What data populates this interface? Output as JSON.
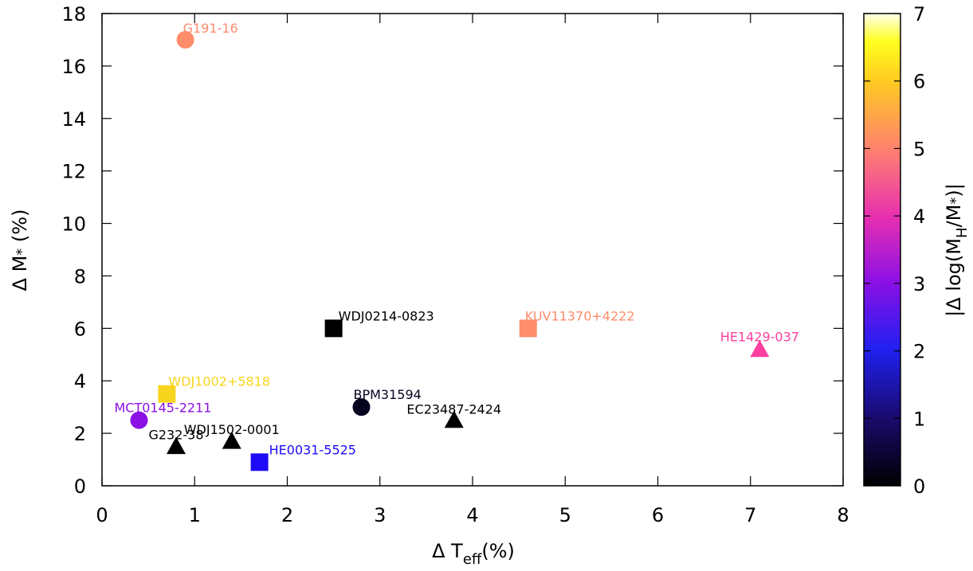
{
  "chart_data": {
    "type": "scatter",
    "xlabel": "Δ T_eff(%)",
    "ylabel": "Δ M* (%)",
    "colorbar_label": "|Δ log(M_H/M*)|",
    "xlim": [
      0,
      8
    ],
    "ylim": [
      0,
      18
    ],
    "clim": [
      0,
      7
    ],
    "x_ticks": [
      "0",
      "1",
      "2",
      "3",
      "4",
      "5",
      "6",
      "7",
      "8"
    ],
    "y_ticks": [
      "0",
      "2",
      "4",
      "6",
      "8",
      "10",
      "12",
      "14",
      "16",
      "18"
    ],
    "colorbar_ticks": [
      "0",
      "1",
      "2",
      "3",
      "4",
      "5",
      "6",
      "7"
    ],
    "grid": false,
    "points": [
      {
        "name": "G191-16",
        "x": 0.9,
        "y": 17.0,
        "marker": "circle",
        "c": 5.0,
        "color": "#ff8c6b"
      },
      {
        "name": "KUV11370+4222",
        "x": 4.6,
        "y": 6.0,
        "marker": "square",
        "c": 5.0,
        "color": "#ff8c6b"
      },
      {
        "name": "HE1429-037",
        "x": 7.1,
        "y": 5.2,
        "marker": "triangle",
        "c": 4.3,
        "color": "#ff3fa0"
      },
      {
        "name": "WDJ0214-0823",
        "x": 2.5,
        "y": 6.0,
        "marker": "square",
        "c": 0.0,
        "color": "#000000"
      },
      {
        "name": "WDJ1002+5818",
        "x": 0.7,
        "y": 3.5,
        "marker": "square",
        "c": 6.2,
        "color": "#f7d51e"
      },
      {
        "name": "BPM31594",
        "x": 2.8,
        "y": 3.0,
        "marker": "circle",
        "c": 0.3,
        "color": "#06031e"
      },
      {
        "name": "EC23487-2424",
        "x": 3.8,
        "y": 2.5,
        "marker": "triangle",
        "c": 0.0,
        "color": "#000000"
      },
      {
        "name": "MCT0145-2211",
        "x": 0.4,
        "y": 2.5,
        "marker": "circle",
        "c": 3.0,
        "color": "#8a10e6"
      },
      {
        "name": "G232-38",
        "x": 0.8,
        "y": 1.5,
        "marker": "triangle",
        "c": 0.0,
        "color": "#000000"
      },
      {
        "name": "WDJ1502-0001",
        "x": 1.4,
        "y": 1.7,
        "marker": "triangle",
        "c": 0.0,
        "color": "#000000"
      },
      {
        "name": "HE0031-5525",
        "x": 1.7,
        "y": 0.9,
        "marker": "square",
        "c": 2.0,
        "color": "#1d0cf5"
      }
    ]
  }
}
